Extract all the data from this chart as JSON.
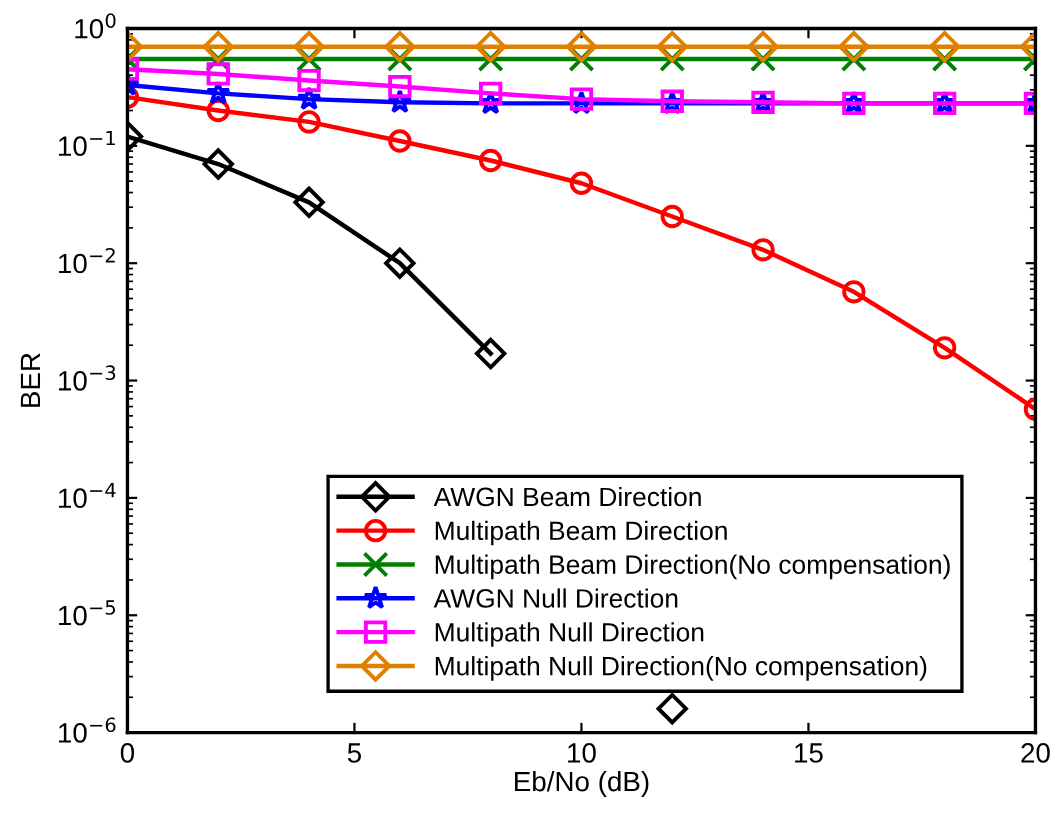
{
  "chart_data": {
    "type": "line",
    "xlabel": "Eb/No (dB)",
    "ylabel": "BER",
    "log": "y",
    "grid": false,
    "legend": "bottom",
    "x": [
      0,
      2,
      4,
      6,
      8,
      10,
      12,
      14,
      16,
      18,
      20
    ],
    "xlim": [
      0,
      20
    ],
    "xticks": [
      0,
      5,
      10,
      15,
      20
    ],
    "ylim": [
      1e-06,
      1
    ],
    "yticks": [
      {
        "value": 1e-06,
        "label": "10$^{−6}$"
      },
      {
        "value": 1e-05,
        "label": "10$^{−5}$"
      },
      {
        "value": 0.0001,
        "label": "10$^{−4}$"
      },
      {
        "value": 0.001,
        "label": "10$^{−3}$"
      },
      {
        "value": 0.01,
        "label": "10$^{−2}$"
      },
      {
        "value": 0.1,
        "label": "10$^{−1}$"
      },
      {
        "value": 1,
        "label": "10$^{0}$"
      }
    ],
    "series": [
      {
        "name": "AWGN Beam Direction",
        "color": "#000000",
        "marker": "diamond",
        "x": [
          0,
          2,
          4,
          6,
          8,
          10,
          12
        ],
        "values": [
          0.12,
          0.07,
          0.033,
          0.01,
          0.0017,
          null,
          1.6e-06
        ]
      },
      {
        "name": "Multipath Beam Direction",
        "color": "#ff0000",
        "marker": "circle",
        "values": [
          0.26,
          0.2,
          0.16,
          0.11,
          0.075,
          0.048,
          0.025,
          0.013,
          0.0057,
          0.0019,
          0.00057
        ]
      },
      {
        "name": "Multipath Beam Direction(No compensation)",
        "color": "#008000",
        "marker": "cross",
        "values": [
          0.55,
          0.55,
          0.55,
          0.55,
          0.55,
          0.55,
          0.55,
          0.55,
          0.55,
          0.55,
          0.55
        ]
      },
      {
        "name": "AWGN Null Direction",
        "color": "#0000ff",
        "marker": "star",
        "values": [
          0.33,
          0.28,
          0.25,
          0.235,
          0.23,
          0.23,
          0.23,
          0.23,
          0.23,
          0.23,
          0.23
        ]
      },
      {
        "name": "Multipath Null Direction",
        "color": "#ff00ff",
        "marker": "square",
        "values": [
          0.45,
          0.41,
          0.36,
          0.32,
          0.28,
          0.25,
          0.24,
          0.235,
          0.23,
          0.23,
          0.23
        ]
      },
      {
        "name": "Multipath Null Direction(No compensation)",
        "color": "#e08000",
        "marker": "diamond",
        "values": [
          0.7,
          0.7,
          0.7,
          0.7,
          0.7,
          0.7,
          0.7,
          0.7,
          0.7,
          0.7,
          0.7
        ]
      }
    ]
  }
}
